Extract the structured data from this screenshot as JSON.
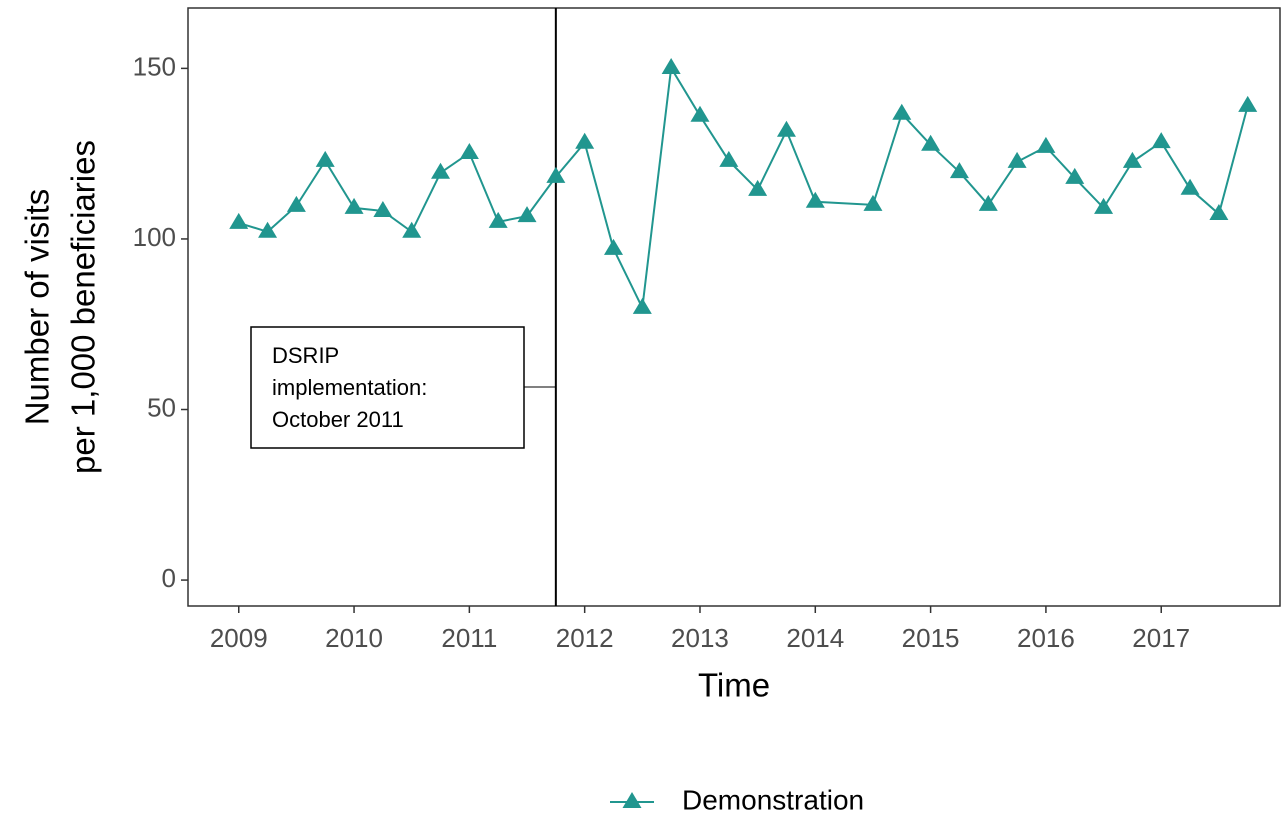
{
  "chart_data": {
    "type": "line",
    "xlabel": "Time",
    "ylabel": [
      "Number of visits",
      "per 1,000 beneficiaries"
    ],
    "x": [
      2009,
      2009.25,
      2009.5,
      2009.75,
      2010,
      2010.25,
      2010.5,
      2010.75,
      2011,
      2011.25,
      2011.5,
      2011.75,
      2012,
      2012.25,
      2012.5,
      2012.75,
      2013,
      2013.25,
      2013.5,
      2013.75,
      2014,
      2014.5,
      2014.75,
      2015,
      2015.25,
      2015.5,
      2015.75,
      2016,
      2016.25,
      2016.5,
      2016.75,
      2017,
      2017.25,
      2017.5,
      2017.75
    ],
    "series": [
      {
        "name": "Demonstration",
        "color": "#21968f",
        "values": [
          104.7,
          102.1,
          109.7,
          122.9,
          109.1,
          108.2,
          102.1,
          119.4,
          125.2,
          105.0,
          106.7,
          118.2,
          128.2,
          97.1,
          79.8,
          150.1,
          136.1,
          122.9,
          114.4,
          131.7,
          110.9,
          110.0,
          136.7,
          127.6,
          119.6,
          110.0,
          122.6,
          127.0,
          117.9,
          109.1,
          122.6,
          128.4,
          114.7,
          107.3,
          139.0
        ]
      }
    ],
    "xlim": [
      2008.56,
      2018.03
    ],
    "xticks": [
      2009,
      2010,
      2011,
      2012,
      2013,
      2014,
      2015,
      2016,
      2017
    ],
    "ylim": [
      -7.6,
      167.7
    ],
    "yticks": [
      0,
      50,
      100,
      150
    ],
    "vline": 2011.75,
    "annotation": [
      "DSRIP",
      "implementation:",
      "October 2011"
    ],
    "legend": "bottom"
  }
}
